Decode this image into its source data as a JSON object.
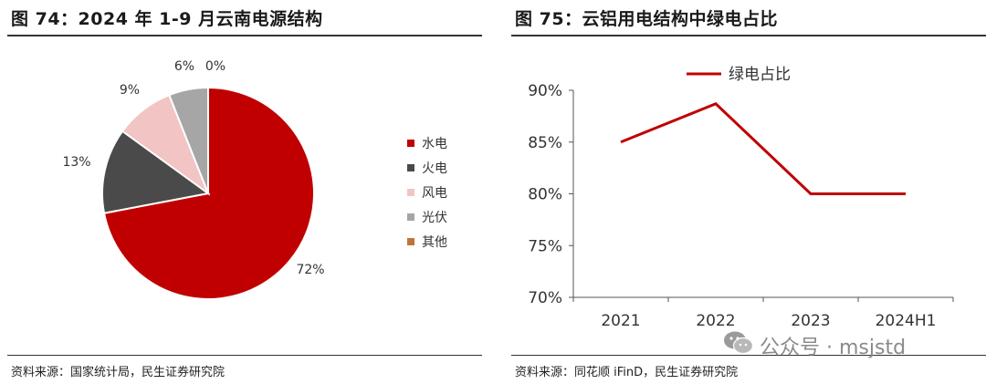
{
  "left": {
    "title": "图 74：2024 年 1-9 月云南电源结构",
    "source": "资料来源：国家统计局，民生证券研究院"
  },
  "right": {
    "title": "图 75：云铝用电结构中绿电占比",
    "source": "资料来源：同花顺 iFinD，民生证券研究院"
  },
  "watermark": {
    "text": "公众号 · msjstd",
    "icon": "wechat-icon"
  },
  "colors": {
    "red": "#c00000",
    "dark": "#4a4a4a",
    "pink": "#f2c4c4",
    "gray": "#a6a6a6",
    "brown": "#c0743c"
  },
  "chart_data": [
    {
      "type": "pie",
      "title": "2024 年 1-9 月云南电源结构",
      "slices": [
        {
          "label": "水电",
          "value": 72,
          "display": "72%",
          "color": "#c00000"
        },
        {
          "label": "火电",
          "value": 13,
          "display": "13%",
          "color": "#4a4a4a"
        },
        {
          "label": "风电",
          "value": 9,
          "display": "9%",
          "color": "#f2c4c4"
        },
        {
          "label": "光伏",
          "value": 6,
          "display": "6%",
          "color": "#a6a6a6"
        },
        {
          "label": "其他",
          "value": 0,
          "display": "0%",
          "color": "#c0743c"
        }
      ],
      "legend_position": "right"
    },
    {
      "type": "line",
      "title": "云铝用电结构中绿电占比",
      "categories": [
        "2021",
        "2022",
        "2023",
        "2024H1"
      ],
      "series": [
        {
          "name": "绿电占比",
          "values": [
            85,
            88.7,
            80,
            80
          ],
          "color": "#c00000"
        }
      ],
      "ylim": [
        70,
        90
      ],
      "yticks": [
        "70%",
        "75%",
        "80%",
        "85%",
        "90%"
      ],
      "ytick_values": [
        70,
        75,
        80,
        85,
        90
      ],
      "grid": false,
      "legend_position": "top"
    }
  ]
}
